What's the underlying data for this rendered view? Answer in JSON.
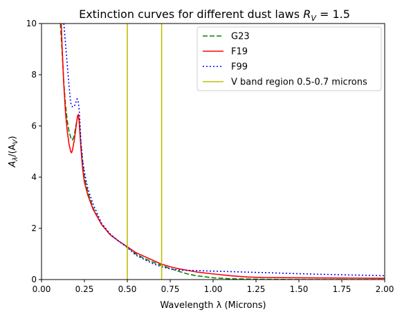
{
  "chart_data": {
    "type": "line",
    "title": "Extinction curves for different dust laws",
    "title_math": "R",
    "title_math_sub": "V",
    "title_math_value": " = 1.5",
    "xlabel": "Wavelength λ (Microns)",
    "ylabel": "A",
    "ylabel_sub": "λ",
    "ylabel_mid": "/(A",
    "ylabel_sub2": "V",
    "ylabel_end": ")",
    "xlim": [
      0.0,
      2.0
    ],
    "ylim": [
      0,
      10
    ],
    "xticks": [
      "0.00",
      "0.25",
      "0.50",
      "0.75",
      "1.00",
      "1.25",
      "1.50",
      "1.75",
      "2.00"
    ],
    "yticks": [
      "0",
      "2",
      "4",
      "6",
      "8",
      "10"
    ],
    "grid": false,
    "legend_position": "top-right",
    "series": [
      {
        "name": "G23",
        "color": "#008000",
        "style": "dashed",
        "x": [
          0.11,
          0.12,
          0.13,
          0.14,
          0.15,
          0.16,
          0.17,
          0.18,
          0.19,
          0.2,
          0.21,
          0.215,
          0.22,
          0.23,
          0.24,
          0.25,
          0.27,
          0.3,
          0.35,
          0.4,
          0.45,
          0.5,
          0.55,
          0.6,
          0.65,
          0.7,
          0.75,
          0.8,
          0.85,
          0.9,
          1.0,
          1.1,
          1.2,
          1.3,
          1.5,
          1.75,
          2.0
        ],
        "y": [
          10.0,
          8.9,
          7.7,
          6.8,
          6.2,
          5.8,
          5.55,
          5.45,
          5.6,
          6.0,
          6.35,
          6.4,
          6.2,
          5.3,
          4.6,
          4.0,
          3.4,
          2.8,
          2.15,
          1.75,
          1.5,
          1.28,
          1.0,
          0.82,
          0.68,
          0.55,
          0.43,
          0.32,
          0.22,
          0.15,
          0.07,
          0.03,
          0.02,
          0.01,
          0.0,
          0.0,
          0.0
        ]
      },
      {
        "name": "F19",
        "color": "#ff0000",
        "style": "solid",
        "x": [
          0.115,
          0.12,
          0.13,
          0.14,
          0.15,
          0.16,
          0.17,
          0.175,
          0.18,
          0.19,
          0.2,
          0.21,
          0.215,
          0.22,
          0.23,
          0.24,
          0.25,
          0.27,
          0.3,
          0.35,
          0.4,
          0.45,
          0.5,
          0.55,
          0.6,
          0.65,
          0.7,
          0.75,
          0.8,
          0.9,
          1.0,
          1.1,
          1.2,
          1.3,
          1.5,
          1.75,
          2.0
        ],
        "y": [
          10.0,
          9.1,
          7.6,
          6.5,
          5.8,
          5.3,
          5.0,
          4.95,
          5.05,
          5.4,
          5.9,
          6.4,
          6.45,
          6.1,
          5.1,
          4.3,
          3.8,
          3.3,
          2.75,
          2.15,
          1.75,
          1.5,
          1.28,
          1.05,
          0.9,
          0.75,
          0.6,
          0.5,
          0.42,
          0.3,
          0.22,
          0.15,
          0.1,
          0.08,
          0.07,
          0.06,
          0.05
        ]
      },
      {
        "name": "F99",
        "color": "#0000ff",
        "style": "dotted",
        "x": [
          0.13,
          0.14,
          0.15,
          0.16,
          0.17,
          0.18,
          0.19,
          0.2,
          0.205,
          0.21,
          0.215,
          0.22,
          0.225,
          0.23,
          0.24,
          0.25,
          0.27,
          0.3,
          0.35,
          0.4,
          0.45,
          0.5,
          0.55,
          0.6,
          0.65,
          0.7,
          0.75,
          0.8,
          0.9,
          1.0,
          1.2,
          1.4,
          1.6,
          1.8,
          2.0
        ],
        "y": [
          10.0,
          9.2,
          8.4,
          7.6,
          6.9,
          6.75,
          6.75,
          6.9,
          7.05,
          7.05,
          6.9,
          6.6,
          6.0,
          5.3,
          4.6,
          4.2,
          3.55,
          2.95,
          2.2,
          1.78,
          1.5,
          1.25,
          0.95,
          0.78,
          0.62,
          0.5,
          0.42,
          0.37,
          0.35,
          0.33,
          0.29,
          0.25,
          0.21,
          0.18,
          0.15
        ]
      },
      {
        "name": "V band region 0.5-0.7 microns",
        "color": "#bfbf00",
        "style": "vertical",
        "x": [
          0.5,
          0.7
        ]
      }
    ]
  }
}
